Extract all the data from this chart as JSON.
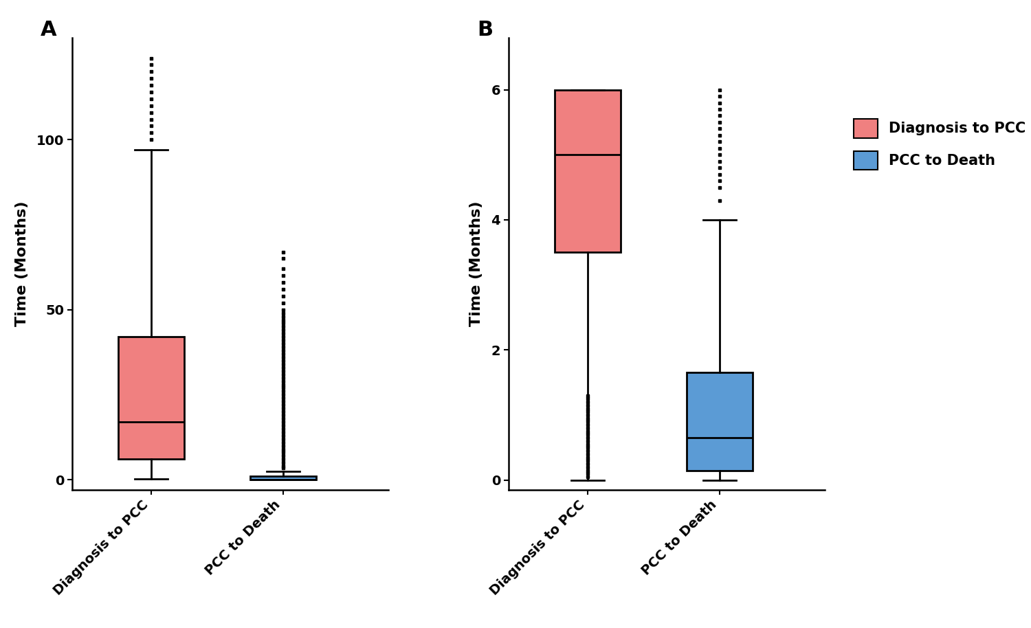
{
  "panel_A": {
    "diag_to_pcc": {
      "whislo": 0.3,
      "q1": 6.0,
      "med": 17.0,
      "q3": 42.0,
      "whishi": 97.0,
      "fliers_above": [
        100,
        102,
        104,
        106,
        108,
        110,
        112,
        114,
        116,
        118,
        120,
        122,
        124
      ],
      "fliers_below": []
    },
    "pcc_to_death": {
      "whislo": 0.0,
      "q1": 0.0,
      "med": 0.0,
      "q3": 1.0,
      "whishi": 2.5,
      "fliers_above": [
        3.5,
        4.0,
        5.0,
        6.0,
        7.0,
        8.0,
        9.0,
        10.0,
        11.0,
        12.0,
        13.0,
        14.0,
        15.0,
        16.0,
        17.0,
        18.0,
        19.0,
        20.0,
        21.0,
        22.0,
        23.0,
        24.0,
        25.0,
        26.0,
        27.0,
        28.0,
        29.0,
        30.0,
        31.0,
        32.0,
        33.0,
        34.0,
        35.0,
        36.0,
        37.0,
        38.0,
        39.0,
        40.0,
        41.0,
        42.0,
        43.0,
        44.0,
        45.0,
        46.0,
        47.0,
        48.0,
        49.0,
        50.0,
        52.0,
        54.0,
        56.0,
        58.0,
        60.0,
        62.0,
        65.0,
        67.0
      ],
      "fliers_below": []
    },
    "ylim": [
      -3,
      130
    ],
    "yticks": [
      0,
      50,
      100
    ],
    "ylabel": "Time (Months)"
  },
  "panel_B": {
    "diag_to_pcc": {
      "whislo": 0.0,
      "q1": 3.5,
      "med": 5.0,
      "q3": 6.0,
      "whishi": 6.0,
      "fliers_above": [],
      "fliers_below": [
        0.05,
        0.1,
        0.15,
        0.2,
        0.25,
        0.3,
        0.35,
        0.4,
        0.45,
        0.5,
        0.55,
        0.6,
        0.65,
        0.7,
        0.75,
        0.8,
        0.85,
        0.9,
        0.95,
        1.0,
        1.05,
        1.1,
        1.15,
        1.2,
        1.25,
        1.3
      ]
    },
    "pcc_to_death": {
      "whislo": 0.0,
      "q1": 0.15,
      "med": 0.65,
      "q3": 1.65,
      "whishi": 4.0,
      "fliers_above": [
        4.3,
        4.5,
        4.6,
        4.7,
        4.8,
        4.9,
        5.0,
        5.1,
        5.2,
        5.3,
        5.4,
        5.5,
        5.6,
        5.7,
        5.8,
        5.9,
        6.0
      ],
      "fliers_below": []
    },
    "ylim": [
      -0.15,
      6.8
    ],
    "yticks": [
      0,
      2,
      4,
      6
    ],
    "ylabel": "Time (Months)"
  },
  "color_pcc": "#F08080",
  "color_death": "#5B9BD5",
  "box_width": 0.5,
  "linewidth": 2.0,
  "flier_marker": "s",
  "flier_size": 3.5,
  "label_pcc": "Diagnosis to PCC",
  "label_death": "PCC to Death",
  "categories": [
    "Diagnosis to PCC",
    "PCC to Death"
  ],
  "panel_A_label": "A",
  "panel_B_label": "B",
  "background_color": "#ffffff"
}
